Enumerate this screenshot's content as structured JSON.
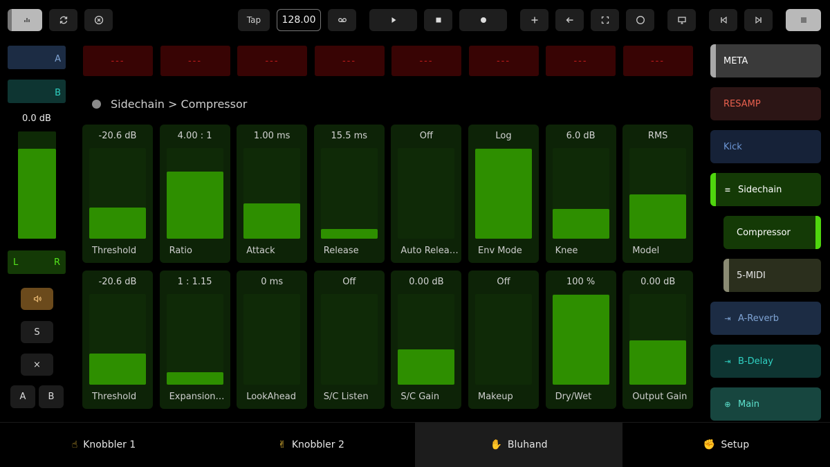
{
  "toolbar": {
    "tap_label": "Tap",
    "tempo_value": "128.00"
  },
  "left": {
    "group_a_label": "A",
    "group_b_label": "B",
    "volume_label": "0.0 dB",
    "volume_level": 0.84,
    "l_label": "L",
    "r_label": "R",
    "solo_label": "S",
    "close_label": "×",
    "a_label": "A",
    "b_label": "B"
  },
  "indicators": [
    "---",
    "---",
    "---",
    "---",
    "---",
    "---",
    "---",
    "---"
  ],
  "breadcrumb": "Sidechain > Compressor",
  "params": {
    "row1": [
      {
        "value": "-20.6 dB",
        "label": "Threshold",
        "level": 0.34
      },
      {
        "value": "4.00 : 1",
        "label": "Ratio",
        "level": 0.74
      },
      {
        "value": "1.00 ms",
        "label": "Attack",
        "level": 0.39
      },
      {
        "value": "15.5 ms",
        "label": "Release",
        "level": 0.11
      },
      {
        "value": "Off",
        "label": "Auto Release",
        "level": 0
      },
      {
        "value": "Log",
        "label": "Env Mode",
        "level": 0.99
      },
      {
        "value": "6.0 dB",
        "label": "Knee",
        "level": 0.33
      },
      {
        "value": "RMS",
        "label": "Model",
        "level": 0.49
      }
    ],
    "row2": [
      {
        "value": "-20.6 dB",
        "label": "Threshold",
        "level": 0.34
      },
      {
        "value": "1 : 1.15",
        "label": "Expansion Ratio",
        "level": 0.14
      },
      {
        "value": "0 ms",
        "label": "LookAhead",
        "level": 0
      },
      {
        "value": "Off",
        "label": "S/C Listen",
        "level": 0
      },
      {
        "value": "0.00 dB",
        "label": "S/C Gain",
        "level": 0.39
      },
      {
        "value": "Off",
        "label": "Makeup",
        "level": 0
      },
      {
        "value": "100 %",
        "label": "Dry/Wet",
        "level": 0.99
      },
      {
        "value": "0.00 dB",
        "label": "Output Gain",
        "level": 0.49
      }
    ]
  },
  "tracks": [
    {
      "label": "META",
      "icon": "",
      "bg": "#3a3a3a",
      "color": "#ffffff",
      "edge": "#a8a8a8",
      "edge_side": "left"
    },
    {
      "label": "RESAMP",
      "icon": "",
      "bg": "#2c1515",
      "color": "#e8604e",
      "edge": "",
      "edge_side": ""
    },
    {
      "label": "Kick",
      "icon": "",
      "bg": "#162238",
      "color": "#6d97d6",
      "edge": "",
      "edge_side": ""
    },
    {
      "label": "Sidechain",
      "icon": "≡",
      "bg": "#143a06",
      "color": "#ffffff",
      "edge": "#4fd60e",
      "edge_side": "left"
    },
    {
      "label": "Compressor",
      "icon": "",
      "bg": "#143a06",
      "color": "#ffffff",
      "edge": "#4fd60e",
      "edge_side": "right"
    },
    {
      "label": "5-MIDI",
      "icon": "",
      "bg": "#2b2f1d",
      "color": "#e6e6e6",
      "edge": "#8a8a73",
      "edge_side": "left"
    },
    {
      "label": "A-Reverb",
      "icon": "⇥",
      "bg": "#1c2c44",
      "color": "#7fa4d4",
      "edge": "",
      "edge_side": ""
    },
    {
      "label": "B-Delay",
      "icon": "⇥",
      "bg": "#0e3532",
      "color": "#2fd0c2",
      "edge": "",
      "edge_side": ""
    },
    {
      "label": "Main",
      "icon": "⊕",
      "bg": "#17463f",
      "color": "#5ee3cf",
      "edge": "",
      "edge_side": ""
    }
  ],
  "bottom_tabs": [
    {
      "label": "Knobbler 1",
      "icon": "☝"
    },
    {
      "label": "Knobbler 2",
      "icon": "✌"
    },
    {
      "label": "Bluhand",
      "icon": "✋"
    },
    {
      "label": "Setup",
      "icon": "✊"
    }
  ],
  "active_tab": 2
}
